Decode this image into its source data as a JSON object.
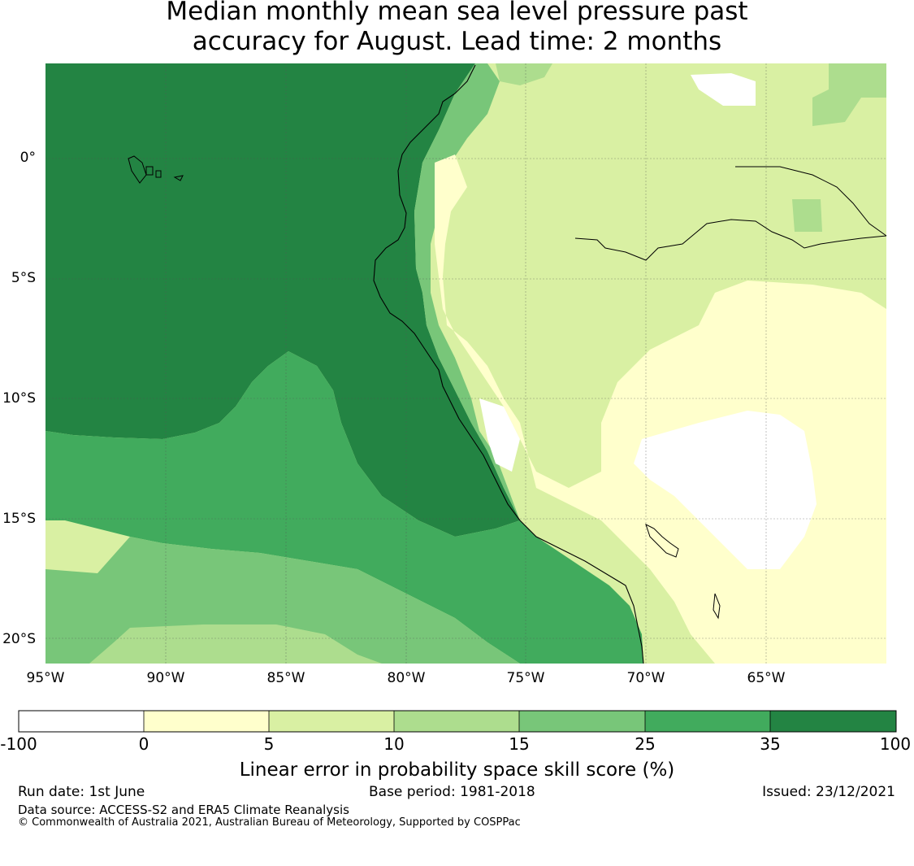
{
  "title": {
    "line1": "Median monthly mean sea level pressure past",
    "line2": "accuracy for August. Lead time: 2 months"
  },
  "map": {
    "lat_labels": [
      "0°",
      "5°S",
      "10°S",
      "15°S",
      "20°S"
    ],
    "lon_labels": [
      "95°W",
      "90°W",
      "85°W",
      "80°W",
      "75°W",
      "70°W",
      "65°W"
    ],
    "extent": {
      "lon": [
        -95,
        -60
      ],
      "lat": [
        -21,
        4
      ]
    },
    "gridlines": true
  },
  "colorbar": {
    "ticks": [
      "-100",
      "0",
      "5",
      "10",
      "15",
      "25",
      "35",
      "100"
    ],
    "colors": [
      "#ffffff",
      "#ffffcc",
      "#d9f0a3",
      "#addd8e",
      "#78c679",
      "#41ab5d",
      "#238443"
    ],
    "label": "Linear error in probability space skill score (%)"
  },
  "footer": {
    "run_date": "Run date: 1st June",
    "base_period": "Base period: 1981-2018",
    "issued": "Issued: 23/12/2021",
    "data_source": "Data source: ACCESS-S2 and ERA5 Climate Reanalysis",
    "copyright": "© Commonwealth of Australia 2021, Australian Bureau of Meteorology, Supported by COSPPac"
  }
}
